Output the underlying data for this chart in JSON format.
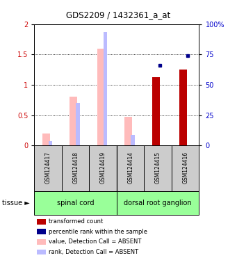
{
  "title": "GDS2209 / 1432361_a_at",
  "samples": [
    "GSM124417",
    "GSM124418",
    "GSM124419",
    "GSM124414",
    "GSM124415",
    "GSM124416"
  ],
  "transformed_count": [
    null,
    null,
    null,
    null,
    1.13,
    1.25
  ],
  "percentile_rank_val": [
    null,
    null,
    null,
    null,
    1.32,
    1.48
  ],
  "value_absent": [
    0.2,
    0.8,
    1.6,
    0.47,
    null,
    null
  ],
  "rank_absent": [
    0.07,
    0.7,
    1.87,
    0.18,
    null,
    null
  ],
  "ylim": [
    0,
    2.0
  ],
  "yticks_left": [
    0,
    0.5,
    1.0,
    1.5,
    2.0
  ],
  "ytick_labels_left": [
    "0",
    "0.5",
    "1",
    "1.5",
    "2"
  ],
  "yticks_right": [
    0,
    25,
    50,
    75,
    100
  ],
  "ytick_labels_right": [
    "0",
    "25",
    "50",
    "75",
    "100%"
  ],
  "left_tick_color": "#cc0000",
  "right_tick_color": "#0000cc",
  "color_transformed": "#bb0000",
  "color_percentile": "#00008b",
  "color_value_absent": "#ffbbbb",
  "color_rank_absent": "#bbbbff",
  "tissue_color": "#99ff99",
  "bg_color": "#cccccc",
  "spinal_cord_label": "spinal cord",
  "dorsal_label": "dorsal root ganglion",
  "tissue_label": "tissue ►",
  "legend_items": [
    {
      "color": "#bb0000",
      "label": "transformed count"
    },
    {
      "color": "#00008b",
      "label": "percentile rank within the sample"
    },
    {
      "color": "#ffbbbb",
      "label": "value, Detection Call = ABSENT"
    },
    {
      "color": "#bbbbff",
      "label": "rank, Detection Call = ABSENT"
    }
  ]
}
